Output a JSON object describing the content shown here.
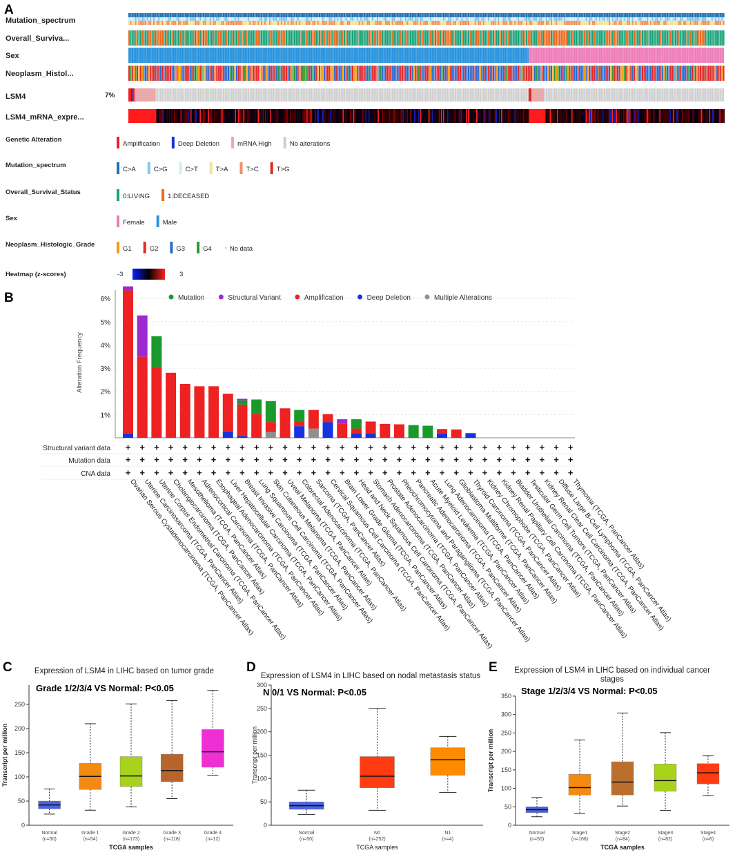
{
  "colors": {
    "amplification": "#ee2222",
    "deep_deletion": "#1533e0",
    "mrna_high": "#e8aaaa",
    "no_alteration": "#cfcfcf",
    "mutation": "#1a9a2a",
    "structural_variant": "#9b2bd0",
    "multiple": "#8f8f8f",
    "living": "#1aa37a",
    "deceased": "#ec6a1d",
    "female": "#ee7db8",
    "male": "#2993dd",
    "g1": "#f59a10",
    "g2": "#e32b2b",
    "g3": "#2a6bd2",
    "g4": "#2c9c2c",
    "box_normal": "#4b63de",
    "grade1": "#f48a12",
    "grade2": "#a9d21a",
    "grade3": "#b7652a",
    "grade4": "#ef2fd4",
    "n0": "#ff3b12",
    "n1": "#ff8c00",
    "stage1": "#f48a12",
    "stage2": "#bb6f2c",
    "stage3": "#a9d21a",
    "stage4": "#ff3b12"
  },
  "panel_a": {
    "letter": "A",
    "tracks": [
      {
        "label": "Mutation_spectrum"
      },
      {
        "label": "Overall_Surviva..."
      },
      {
        "label": "Sex"
      },
      {
        "label": "Neoplasm_Histol..."
      },
      {
        "label": "LSM4",
        "pct": "7%"
      },
      {
        "label": "LSM4_mRNA_expre..."
      }
    ],
    "legends": [
      {
        "title": "Genetic Alteration",
        "items": [
          [
            "Amplification",
            "amplification"
          ],
          [
            "Deep Deletion",
            "deep_deletion"
          ],
          [
            "mRNA High",
            "mrna_high"
          ],
          [
            "No alterations",
            "no_alteration"
          ]
        ]
      },
      {
        "title": "Mutation_spectrum",
        "items": [
          [
            "C>A",
            "#1f6fb8"
          ],
          [
            "C>G",
            "#86c8e8"
          ],
          [
            "C>T",
            "#cdeff0"
          ],
          [
            "T>A",
            "#f2e29a"
          ],
          [
            "T>C",
            "#f29060"
          ],
          [
            "T>G",
            "#e2271f"
          ]
        ]
      },
      {
        "title": "Overall_Survival_Status",
        "items": [
          [
            "0:LIVING",
            "living"
          ],
          [
            "1:DECEASED",
            "deceased"
          ]
        ]
      },
      {
        "title": "Sex",
        "items": [
          [
            "Female",
            "female"
          ],
          [
            "Male",
            "male"
          ]
        ]
      },
      {
        "title": "Neoplasm_Histologic_Grade",
        "items": [
          [
            "G1",
            "g1"
          ],
          [
            "G2",
            "g2"
          ],
          [
            "G3",
            "g3"
          ],
          [
            "G4",
            "g4"
          ],
          [
            "No data",
            "none"
          ]
        ]
      }
    ],
    "heatmap_title": "Heatmap (z-scores)",
    "heatmap_min": "-3",
    "heatmap_max": "3"
  },
  "chart_data": [
    {
      "panel": "B",
      "type": "bar",
      "stacked": true,
      "ylabel": "Alteration Frequency",
      "ylim": [
        0,
        6.6
      ],
      "yticks": [
        "1%",
        "2%",
        "3%",
        "4%",
        "5%",
        "6%"
      ],
      "legend": [
        [
          "Mutation",
          "mutation"
        ],
        [
          "Structural Variant",
          "structural_variant"
        ],
        [
          "Amplification",
          "amplification"
        ],
        [
          "Deep Deletion",
          "deep_deletion"
        ],
        [
          "Multiple Alterations",
          "multiple"
        ]
      ],
      "row_labels": [
        "Structural variant data",
        "Mutation data",
        "CNA data"
      ],
      "categories": [
        "Ovarian Serous Cystadenocarcinoma (TCGA, PanCancer Atlas)",
        "Uterine Carcinosarcoma (TCGA, PanCancer Atlas)",
        "Uterine Corpus Endometrial Carcinoma (TCGA, PanCancer Atlas)",
        "Cholangiocarcinoma (TCGA, PanCancer Atlas)",
        "Mesothelioma (TCGA, PanCancer Atlas)",
        "Adrenocortical Carcinoma (TCGA, PanCancer Atlas)",
        "Esophageal Adenocarcinoma (TCGA, PanCancer Atlas)",
        "Liver Hepatocellular Carcinoma (TCGA, PanCancer Atlas)",
        "Breast Invasive Carcinoma (TCGA, PanCancer Atlas)",
        "Lung Squamous Cell Carcinoma (TCGA, PanCancer Atlas)",
        "Skin Cutaneous Melanoma (TCGA, PanCancer Atlas)",
        "Uveal Melanoma (TCGA, PanCancer Atlas)",
        "Colorectal Adenocarcinoma (TCGA, PanCancer Atlas)",
        "Sarcoma (TCGA, PanCancer Atlas)",
        "Cervical Squamous Cell Carcinoma (TCGA, PanCancer Atlas)",
        "Brain Lower Grade Glioma (TCGA, PanCancer Atlas)",
        "Head and Neck Squamous Cell Carcinoma (TCGA, PanCancer Atlas)",
        "Stomach Adenocarcinoma (TCGA, PanCancer Atlas)",
        "Prostate Adenocarcinoma (TCGA, PanCancer Atlas)",
        "Pheochromocytoma and Paraganglioma (TCGA, PanCancer Atlas)",
        "Pancreatic Adenocarcinoma (TCGA, PanCancer Atlas)",
        "Acute Myeloid Leukemia (TCGA, PanCancer Atlas)",
        "Lung Adenocarcinoma (TCGA, PanCancer Atlas)",
        "Glioblastoma Multiforme (TCGA, PanCancer Atlas)",
        "Thyroid Carcinoma (TCGA, PanCancer Atlas)",
        "Kidney Chromophobe (TCGA, PanCancer Atlas)",
        "Kidney Renal Papillary Cell Carcinoma (TCGA, PanCancer Atlas)",
        "Bladder Urothelial Carcinoma (TCGA, PanCancer Atlas)",
        "Testicular Germ Cell Tumors (TCGA, PanCancer Atlas)",
        "Kidney Renal Clear Cell Carcinoma (TCGA, PanCancer Atlas)",
        "Diffuse Large B-Cell Lymphoma (TCGA, PanCancer Atlas)",
        "Thymoma (TCGA, PanCancer Atlas)"
      ],
      "series": [
        {
          "name": "Deep Deletion",
          "key": "deep_deletion",
          "values": [
            0.18,
            0,
            0,
            0,
            0,
            0,
            0,
            0.27,
            0.08,
            0,
            0,
            0,
            0.5,
            0,
            0.67,
            0,
            0.2,
            0.2,
            0,
            0,
            0,
            0,
            0.18,
            0,
            0.2,
            0,
            0,
            0,
            0,
            0,
            0,
            0
          ]
        },
        {
          "name": "Multiple Alterations",
          "key": "multiple",
          "values": [
            0,
            0,
            0,
            0,
            0,
            0,
            0,
            0,
            0,
            0,
            0.25,
            0,
            0,
            0.4,
            0,
            0,
            0,
            0,
            0,
            0,
            0,
            0,
            0,
            0,
            0,
            0,
            0,
            0,
            0,
            0,
            0,
            0
          ]
        },
        {
          "name": "Amplification",
          "key": "amplification",
          "values": [
            6.17,
            3.5,
            3.05,
            2.8,
            2.32,
            2.22,
            2.22,
            1.63,
            1.35,
            1.03,
            0.43,
            1.27,
            0.2,
            0.8,
            0.35,
            0.6,
            0.2,
            0.5,
            0.6,
            0.58,
            0,
            0,
            0.2,
            0.36,
            0,
            0,
            0,
            0,
            0,
            0,
            0,
            0
          ]
        },
        {
          "name": "Mutation",
          "key": "mutation",
          "values": [
            0,
            0,
            1.32,
            0,
            0,
            0,
            0,
            0,
            0.18,
            0.62,
            0.9,
            0,
            0.5,
            0,
            0,
            0,
            0.4,
            0,
            0,
            0,
            0.55,
            0.52,
            0,
            0,
            0,
            0,
            0,
            0,
            0,
            0,
            0,
            0
          ]
        },
        {
          "name": "Structural Variant",
          "key": "structural_variant",
          "values": [
            0.17,
            1.77,
            0,
            0,
            0,
            0,
            0,
            0,
            0.07,
            0,
            0,
            0,
            0,
            0,
            0,
            0.2,
            0,
            0,
            0,
            0,
            0,
            0,
            0,
            0,
            0,
            0,
            0,
            0,
            0,
            0,
            0,
            0
          ]
        }
      ]
    },
    {
      "panel": "C",
      "type": "box",
      "title": "Expression of LSM4 in LIHC based on tumor grade",
      "subtitle": "Grade 1/2/3/4 VS Normal: P<0.05",
      "xlabel": "TCGA samples",
      "ylabel": "Transcript per million",
      "ylim": [
        0,
        290
      ],
      "yticks": [
        0,
        50,
        100,
        150,
        200,
        250
      ],
      "groups": [
        {
          "name": "Normal",
          "n": "(n=50)",
          "min": 23,
          "q1": 34,
          "median": 42,
          "q3": 50,
          "max": 75,
          "color": "box_normal"
        },
        {
          "name": "Grade 1",
          "n": "(n=54)",
          "min": 31,
          "q1": 74,
          "median": 101,
          "q3": 128,
          "max": 210,
          "color": "grade1"
        },
        {
          "name": "Grade 2",
          "n": "(n=173)",
          "min": 38,
          "q1": 80,
          "median": 102,
          "q3": 142,
          "max": 251,
          "color": "grade2"
        },
        {
          "name": "Grade 3",
          "n": "(n=118)",
          "min": 55,
          "q1": 90,
          "median": 113,
          "q3": 147,
          "max": 258,
          "color": "grade3"
        },
        {
          "name": "Grade 4",
          "n": "(n=12)",
          "min": 103,
          "q1": 120,
          "median": 152,
          "q3": 198,
          "max": 279,
          "color": "grade4"
        }
      ]
    },
    {
      "panel": "D",
      "type": "box",
      "title": "Expression of LSM4 in LIHC based on nodal metastasis status",
      "subtitle": "N 0/1 VS Normal: P<0.05",
      "xlabel": "TCGA samples",
      "ylabel": "Transcript per million",
      "ylim": [
        0,
        300
      ],
      "yticks": [
        0,
        50,
        100,
        150,
        200,
        250,
        300
      ],
      "groups": [
        {
          "name": "Normal",
          "n": "(n=50)",
          "min": 23,
          "q1": 34,
          "median": 42,
          "q3": 50,
          "max": 75,
          "color": "box_normal"
        },
        {
          "name": "N0",
          "n": "(n=252)",
          "min": 32,
          "q1": 80,
          "median": 105,
          "q3": 147,
          "max": 250,
          "color": "n0"
        },
        {
          "name": "N1",
          "n": "(n=4)",
          "min": 70,
          "q1": 107,
          "median": 140,
          "q3": 166,
          "max": 190,
          "color": "n1"
        }
      ]
    },
    {
      "panel": "E",
      "type": "box",
      "title": "Expression of LSM4 in LIHC based on individual cancer stages",
      "subtitle": "Stage 1/2/3/4 VS Normal: P<0.05",
      "xlabel": "TCGA samples",
      "ylabel": "Transcript per million",
      "ylim": [
        0,
        350
      ],
      "yticks": [
        0,
        50,
        100,
        150,
        200,
        250,
        300,
        350
      ],
      "groups": [
        {
          "name": "Normal",
          "n": "(n=50)",
          "min": 23,
          "q1": 34,
          "median": 42,
          "q3": 50,
          "max": 75,
          "color": "box_normal"
        },
        {
          "name": "Stage1",
          "n": "(n=168)",
          "min": 32,
          "q1": 82,
          "median": 102,
          "q3": 138,
          "max": 231,
          "color": "stage1"
        },
        {
          "name": "Stage2",
          "n": "(n=84)",
          "min": 52,
          "q1": 82,
          "median": 117,
          "q3": 172,
          "max": 304,
          "color": "stage2"
        },
        {
          "name": "Stage3",
          "n": "(n=82)",
          "min": 40,
          "q1": 92,
          "median": 121,
          "q3": 166,
          "max": 251,
          "color": "stage3"
        },
        {
          "name": "Stage4",
          "n": "(n=6)",
          "min": 80,
          "q1": 112,
          "median": 142,
          "q3": 167,
          "max": 188,
          "color": "stage4"
        }
      ]
    }
  ]
}
